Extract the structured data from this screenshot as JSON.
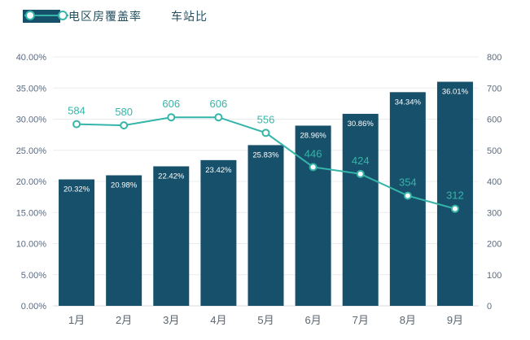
{
  "legend": {
    "bar_label": "电区房覆盖率",
    "line_label": "车站比"
  },
  "colors": {
    "bar": "#17506A",
    "line": "#35B5A9",
    "axis_label": "#5A6B80",
    "x_label": "#5A6570",
    "grid": "#E9ECEF",
    "bar_value_label": "#FFFFFF"
  },
  "chart_data": {
    "type": "combo",
    "categories": [
      "1月",
      "2月",
      "3月",
      "4月",
      "5月",
      "6月",
      "7月",
      "8月",
      "9月"
    ],
    "series": [
      {
        "name": "电区房覆盖率",
        "type": "bar",
        "axis": "left",
        "values": [
          20.32,
          20.98,
          22.42,
          23.42,
          25.83,
          28.96,
          30.86,
          34.34,
          36.01
        ],
        "labels": [
          "20.32%",
          "20.98%",
          "22.42%",
          "23.42%",
          "25.83%",
          "28.96%",
          "30.86%",
          "34.34%",
          "36.01%"
        ]
      },
      {
        "name": "车站比",
        "type": "line",
        "axis": "right",
        "values": [
          584,
          580,
          606,
          606,
          556,
          446,
          424,
          354,
          312
        ],
        "labels": [
          "584",
          "580",
          "606",
          "606",
          "556",
          "446",
          "424",
          "354",
          "312"
        ]
      }
    ],
    "left_axis": {
      "min": 0,
      "max": 40,
      "step": 5,
      "tick_labels": [
        "0.00%",
        "5.00%",
        "10.00%",
        "15.00%",
        "20.00%",
        "25.00%",
        "30.00%",
        "35.00%",
        "40.00%"
      ]
    },
    "right_axis": {
      "min": 0,
      "max": 800,
      "step": 100,
      "tick_labels": [
        "0",
        "100",
        "200",
        "300",
        "400",
        "500",
        "600",
        "700",
        "800"
      ]
    },
    "grid": true,
    "legend_position": "top-left"
  }
}
